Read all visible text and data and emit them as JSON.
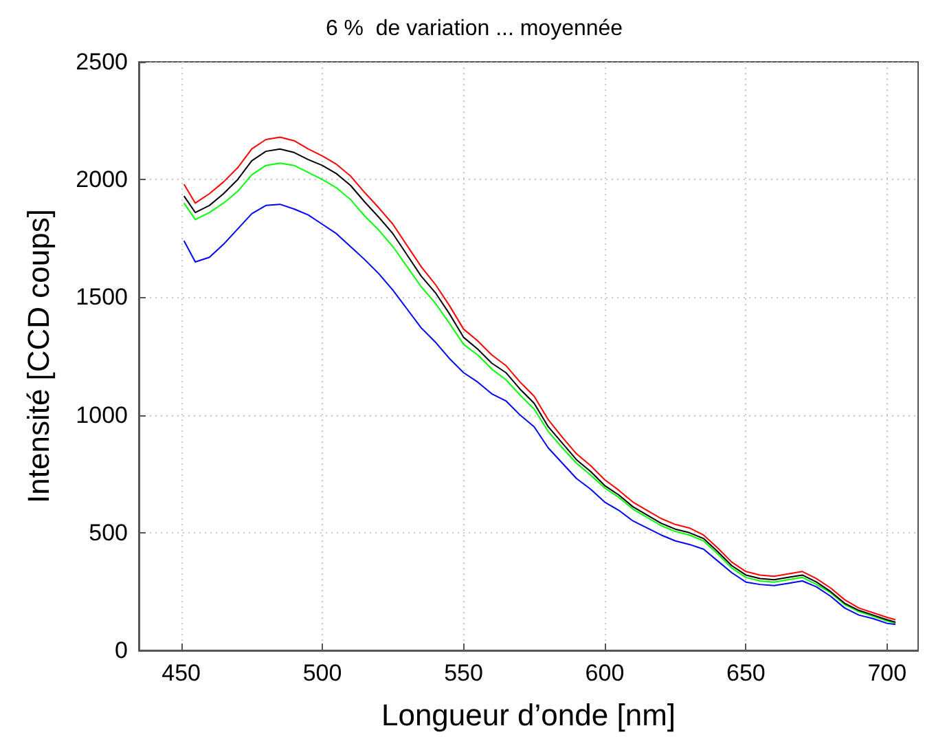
{
  "chart_data": {
    "type": "line",
    "title": "6 %  de variation ... moyennée",
    "xlabel": "Longueur d’onde [nm]",
    "ylabel": "Intensité [CCD coups]",
    "x": [
      451,
      455,
      460,
      465,
      470,
      475,
      480,
      485,
      490,
      495,
      500,
      505,
      510,
      515,
      520,
      525,
      530,
      535,
      540,
      545,
      550,
      555,
      560,
      565,
      570,
      575,
      580,
      585,
      590,
      595,
      600,
      605,
      610,
      615,
      620,
      625,
      630,
      635,
      640,
      645,
      650,
      655,
      660,
      665,
      670,
      675,
      680,
      685,
      690,
      695,
      700,
      703
    ],
    "series": [
      {
        "color": "#ff0000",
        "values": [
          1980,
          1900,
          1940,
          1990,
          2050,
          2130,
          2170,
          2180,
          2165,
          2130,
          2100,
          2065,
          2015,
          1945,
          1880,
          1810,
          1720,
          1630,
          1555,
          1465,
          1365,
          1315,
          1255,
          1210,
          1140,
          1080,
          980,
          905,
          835,
          785,
          725,
          680,
          630,
          595,
          560,
          535,
          520,
          490,
          435,
          375,
          335,
          320,
          315,
          325,
          335,
          305,
          265,
          215,
          180,
          160,
          140,
          130
        ]
      },
      {
        "color": "#00ff00",
        "values": [
          1900,
          1830,
          1860,
          1900,
          1950,
          2020,
          2060,
          2070,
          2060,
          2030,
          2000,
          1965,
          1915,
          1845,
          1785,
          1715,
          1630,
          1545,
          1475,
          1390,
          1300,
          1255,
          1195,
          1150,
          1085,
          1025,
          930,
          860,
          795,
          745,
          690,
          650,
          600,
          565,
          530,
          505,
          490,
          465,
          410,
          350,
          310,
          295,
          290,
          300,
          310,
          280,
          245,
          195,
          165,
          145,
          125,
          115
        ]
      },
      {
        "color": "#0000ff",
        "values": [
          1740,
          1650,
          1670,
          1725,
          1790,
          1855,
          1890,
          1895,
          1875,
          1850,
          1810,
          1770,
          1715,
          1660,
          1600,
          1530,
          1450,
          1370,
          1310,
          1240,
          1180,
          1140,
          1090,
          1060,
          1000,
          950,
          860,
          795,
          730,
          685,
          630,
          595,
          550,
          520,
          490,
          465,
          450,
          430,
          380,
          330,
          290,
          280,
          275,
          285,
          295,
          270,
          230,
          180,
          150,
          135,
          115,
          110
        ]
      },
      {
        "color": "#000000",
        "values": [
          1930,
          1860,
          1890,
          1940,
          2000,
          2080,
          2120,
          2130,
          2115,
          2085,
          2060,
          2025,
          1975,
          1905,
          1840,
          1770,
          1680,
          1590,
          1520,
          1430,
          1330,
          1280,
          1220,
          1180,
          1110,
          1050,
          950,
          880,
          810,
          760,
          700,
          660,
          610,
          575,
          540,
          515,
          500,
          475,
          420,
          360,
          320,
          305,
          300,
          310,
          320,
          290,
          250,
          200,
          170,
          150,
          130,
          120
        ]
      }
    ],
    "xlim": [
      435,
      711
    ],
    "xticks": [
      450,
      500,
      550,
      600,
      650,
      700
    ],
    "ylim": [
      0,
      2500
    ],
    "yticks": [
      0,
      500,
      1000,
      1500,
      2000,
      2500
    ],
    "grid": true,
    "marker": "none",
    "line_style": "solid"
  }
}
